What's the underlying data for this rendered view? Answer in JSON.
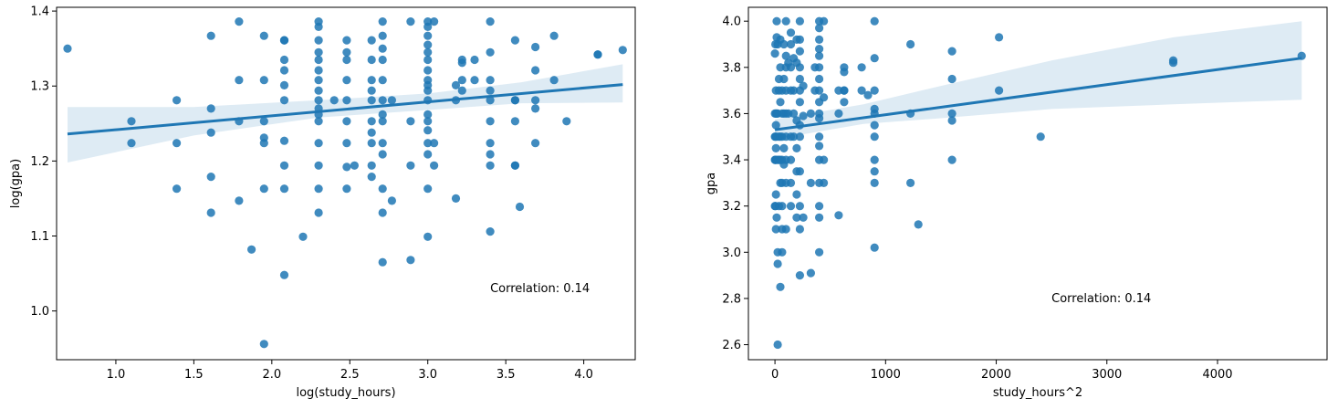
{
  "chart_data": [
    {
      "type": "scatter",
      "xlabel": "log(study_hours)",
      "ylabel": "log(gpa)",
      "xlim": [
        0.62,
        4.33
      ],
      "ylim": [
        0.935,
        1.405
      ],
      "xticks": [
        1.0,
        1.5,
        2.0,
        2.5,
        3.0,
        3.5,
        4.0
      ],
      "xtick_labels": [
        "1.0",
        "1.5",
        "2.0",
        "2.5",
        "3.0",
        "3.5",
        "4.0"
      ],
      "yticks": [
        1.0,
        1.1,
        1.2,
        1.3,
        1.4
      ],
      "ytick_labels": [
        "1.0",
        "1.1",
        "1.2",
        "1.3",
        "1.4"
      ],
      "annotation": {
        "text": "Correlation: 0.14",
        "x": 3.4,
        "y": 1.03
      },
      "regression": {
        "line": [
          [
            0.69,
            1.236
          ],
          [
            4.25,
            1.302
          ]
        ],
        "ci_upper": [
          [
            0.69,
            1.272
          ],
          [
            1.5,
            1.272
          ],
          [
            2.3,
            1.281
          ],
          [
            3.0,
            1.29
          ],
          [
            3.6,
            1.305
          ],
          [
            4.25,
            1.329
          ]
        ],
        "ci_lower": [
          [
            0.69,
            1.198
          ],
          [
            1.5,
            1.234
          ],
          [
            2.3,
            1.258
          ],
          [
            3.0,
            1.268
          ],
          [
            3.6,
            1.277
          ],
          [
            4.25,
            1.278
          ]
        ]
      },
      "points": [
        [
          0.69,
          1.35
        ],
        [
          1.1,
          1.253
        ],
        [
          1.1,
          1.224
        ],
        [
          1.39,
          1.281
        ],
        [
          1.39,
          1.224
        ],
        [
          1.39,
          1.163
        ],
        [
          1.61,
          1.367
        ],
        [
          1.61,
          1.27
        ],
        [
          1.61,
          1.238
        ],
        [
          1.61,
          1.179
        ],
        [
          1.61,
          1.131
        ],
        [
          1.79,
          1.386
        ],
        [
          1.79,
          1.308
        ],
        [
          1.79,
          1.253
        ],
        [
          1.79,
          1.147
        ],
        [
          1.95,
          1.367
        ],
        [
          1.95,
          1.308
        ],
        [
          1.95,
          1.253
        ],
        [
          1.95,
          1.231
        ],
        [
          1.95,
          1.224
        ],
        [
          1.95,
          1.163
        ],
        [
          1.95,
          0.956
        ],
        [
          1.87,
          1.082
        ],
        [
          2.08,
          1.361
        ],
        [
          2.08,
          1.361
        ],
        [
          2.08,
          1.335
        ],
        [
          2.08,
          1.321
        ],
        [
          2.08,
          1.301
        ],
        [
          2.08,
          1.281
        ],
        [
          2.08,
          1.227
        ],
        [
          2.08,
          1.194
        ],
        [
          2.08,
          1.163
        ],
        [
          2.08,
          1.048
        ],
        [
          2.2,
          1.099
        ],
        [
          2.3,
          1.386
        ],
        [
          2.3,
          1.379
        ],
        [
          2.3,
          1.361
        ],
        [
          2.3,
          1.345
        ],
        [
          2.3,
          1.335
        ],
        [
          2.3,
          1.321
        ],
        [
          2.3,
          1.308
        ],
        [
          2.3,
          1.294
        ],
        [
          2.3,
          1.281
        ],
        [
          2.3,
          1.27
        ],
        [
          2.3,
          1.262
        ],
        [
          2.3,
          1.253
        ],
        [
          2.3,
          1.224
        ],
        [
          2.3,
          1.194
        ],
        [
          2.3,
          1.163
        ],
        [
          2.3,
          1.131
        ],
        [
          2.4,
          1.281
        ],
        [
          2.48,
          1.361
        ],
        [
          2.48,
          1.345
        ],
        [
          2.48,
          1.335
        ],
        [
          2.48,
          1.308
        ],
        [
          2.48,
          1.281
        ],
        [
          2.48,
          1.253
        ],
        [
          2.48,
          1.224
        ],
        [
          2.48,
          1.192
        ],
        [
          2.48,
          1.163
        ],
        [
          2.53,
          1.194
        ],
        [
          2.64,
          1.361
        ],
        [
          2.64,
          1.335
        ],
        [
          2.64,
          1.308
        ],
        [
          2.64,
          1.294
        ],
        [
          2.64,
          1.281
        ],
        [
          2.64,
          1.253
        ],
        [
          2.64,
          1.238
        ],
        [
          2.64,
          1.224
        ],
        [
          2.64,
          1.194
        ],
        [
          2.64,
          1.179
        ],
        [
          2.71,
          1.386
        ],
        [
          2.71,
          1.367
        ],
        [
          2.71,
          1.35
        ],
        [
          2.71,
          1.335
        ],
        [
          2.71,
          1.308
        ],
        [
          2.71,
          1.281
        ],
        [
          2.71,
          1.262
        ],
        [
          2.71,
          1.253
        ],
        [
          2.71,
          1.224
        ],
        [
          2.71,
          1.209
        ],
        [
          2.71,
          1.163
        ],
        [
          2.71,
          1.131
        ],
        [
          2.71,
          1.065
        ],
        [
          2.77,
          1.281
        ],
        [
          2.77,
          1.147
        ],
        [
          2.89,
          1.386
        ],
        [
          2.89,
          1.253
        ],
        [
          2.89,
          1.194
        ],
        [
          2.89,
          1.068
        ],
        [
          3.0,
          1.386
        ],
        [
          3.0,
          1.379
        ],
        [
          3.0,
          1.367
        ],
        [
          3.0,
          1.355
        ],
        [
          3.0,
          1.345
        ],
        [
          3.0,
          1.335
        ],
        [
          3.0,
          1.321
        ],
        [
          3.0,
          1.308
        ],
        [
          3.0,
          1.301
        ],
        [
          3.0,
          1.294
        ],
        [
          3.0,
          1.281
        ],
        [
          3.0,
          1.262
        ],
        [
          3.0,
          1.253
        ],
        [
          3.0,
          1.241
        ],
        [
          3.0,
          1.224
        ],
        [
          3.0,
          1.209
        ],
        [
          3.0,
          1.163
        ],
        [
          3.0,
          1.099
        ],
        [
          3.04,
          1.386
        ],
        [
          3.04,
          1.224
        ],
        [
          3.04,
          1.194
        ],
        [
          3.18,
          1.301
        ],
        [
          3.18,
          1.281
        ],
        [
          3.18,
          1.15
        ],
        [
          3.22,
          1.335
        ],
        [
          3.22,
          1.331
        ],
        [
          3.22,
          1.308
        ],
        [
          3.22,
          1.294
        ],
        [
          3.3,
          1.308
        ],
        [
          3.3,
          1.335
        ],
        [
          3.4,
          1.386
        ],
        [
          3.4,
          1.345
        ],
        [
          3.4,
          1.308
        ],
        [
          3.4,
          1.294
        ],
        [
          3.4,
          1.281
        ],
        [
          3.4,
          1.253
        ],
        [
          3.4,
          1.224
        ],
        [
          3.4,
          1.209
        ],
        [
          3.4,
          1.194
        ],
        [
          3.4,
          1.106
        ],
        [
          3.56,
          1.361
        ],
        [
          3.56,
          1.281
        ],
        [
          3.56,
          1.194
        ],
        [
          3.56,
          1.281
        ],
        [
          3.56,
          1.194
        ],
        [
          3.56,
          1.253
        ],
        [
          3.59,
          1.139
        ],
        [
          3.69,
          1.352
        ],
        [
          3.69,
          1.321
        ],
        [
          3.69,
          1.281
        ],
        [
          3.69,
          1.27
        ],
        [
          3.69,
          1.224
        ],
        [
          3.81,
          1.367
        ],
        [
          3.81,
          1.308
        ],
        [
          3.89,
          1.253
        ],
        [
          4.09,
          1.342
        ],
        [
          4.09,
          1.342
        ],
        [
          4.25,
          1.348
        ]
      ]
    },
    {
      "type": "scatter",
      "xlabel": "study_hours^2",
      "ylabel": "gpa",
      "xlim": [
        -240,
        4990
      ],
      "ylim": [
        2.535,
        4.06
      ],
      "xticks": [
        0,
        1000,
        2000,
        3000,
        4000
      ],
      "xtick_labels": [
        "0",
        "1000",
        "2000",
        "3000",
        "4000"
      ],
      "yticks": [
        2.6,
        2.8,
        3.0,
        3.2,
        3.4,
        3.6,
        3.8,
        4.0
      ],
      "ytick_labels": [
        "2.6",
        "2.8",
        "3.0",
        "3.2",
        "3.4",
        "3.6",
        "3.8",
        "4.0"
      ],
      "annotation": {
        "text": "Correlation: 0.14",
        "x": 2500,
        "y": 2.8
      },
      "regression": {
        "line": [
          [
            0,
            3.53
          ],
          [
            4761,
            3.84
          ]
        ],
        "ci_upper": [
          [
            0,
            3.575
          ],
          [
            800,
            3.64
          ],
          [
            1500,
            3.72
          ],
          [
            2500,
            3.83
          ],
          [
            3600,
            3.93
          ],
          [
            4761,
            4.0
          ]
        ],
        "ci_lower": [
          [
            0,
            3.49
          ],
          [
            800,
            3.555
          ],
          [
            1500,
            3.58
          ],
          [
            2500,
            3.62
          ],
          [
            3600,
            3.64
          ],
          [
            4761,
            3.66
          ]
        ]
      },
      "points": [
        [
          0,
          3.86
        ],
        [
          0,
          3.6
        ],
        [
          0,
          3.5
        ],
        [
          0,
          3.4
        ],
        [
          0,
          3.2
        ],
        [
          4,
          3.9
        ],
        [
          4,
          3.5
        ],
        [
          4,
          3.4
        ],
        [
          4,
          3.2
        ],
        [
          9,
          3.7
        ],
        [
          9,
          3.6
        ],
        [
          9,
          3.55
        ],
        [
          9,
          3.45
        ],
        [
          9,
          3.4
        ],
        [
          9,
          3.25
        ],
        [
          9,
          3.1
        ],
        [
          16,
          4.0
        ],
        [
          16,
          3.93
        ],
        [
          16,
          3.6
        ],
        [
          16,
          3.5
        ],
        [
          16,
          3.15
        ],
        [
          25,
          3.9
        ],
        [
          25,
          3.6
        ],
        [
          25,
          3.4
        ],
        [
          25,
          3.0
        ],
        [
          25,
          2.95
        ],
        [
          25,
          2.6
        ],
        [
          36,
          3.75
        ],
        [
          36,
          3.7
        ],
        [
          36,
          3.5
        ],
        [
          36,
          3.4
        ],
        [
          36,
          3.2
        ],
        [
          49,
          3.92
        ],
        [
          49,
          3.8
        ],
        [
          49,
          3.65
        ],
        [
          49,
          3.5
        ],
        [
          49,
          3.4
        ],
        [
          49,
          3.3
        ],
        [
          49,
          2.85
        ],
        [
          64,
          3.7
        ],
        [
          64,
          3.6
        ],
        [
          64,
          3.5
        ],
        [
          64,
          3.4
        ],
        [
          64,
          3.3
        ],
        [
          64,
          3.2
        ],
        [
          64,
          3.1
        ],
        [
          64,
          3.0
        ],
        [
          81,
          3.9
        ],
        [
          81,
          3.75
        ],
        [
          81,
          3.6
        ],
        [
          81,
          3.45
        ],
        [
          81,
          3.38
        ],
        [
          100,
          4.0
        ],
        [
          100,
          3.85
        ],
        [
          100,
          3.8
        ],
        [
          100,
          3.7
        ],
        [
          100,
          3.6
        ],
        [
          100,
          3.5
        ],
        [
          100,
          3.4
        ],
        [
          100,
          3.3
        ],
        [
          100,
          3.1
        ],
        [
          121,
          3.82
        ],
        [
          121,
          3.6
        ],
        [
          144,
          3.95
        ],
        [
          144,
          3.9
        ],
        [
          144,
          3.8
        ],
        [
          144,
          3.7
        ],
        [
          144,
          3.5
        ],
        [
          144,
          3.4
        ],
        [
          144,
          3.3
        ],
        [
          144,
          3.2
        ],
        [
          169,
          3.84
        ],
        [
          169,
          3.7
        ],
        [
          169,
          3.6
        ],
        [
          169,
          3.5
        ],
        [
          196,
          3.92
        ],
        [
          196,
          3.82
        ],
        [
          196,
          3.57
        ],
        [
          196,
          3.45
        ],
        [
          196,
          3.35
        ],
        [
          196,
          3.25
        ],
        [
          196,
          3.15
        ],
        [
          225,
          4.0
        ],
        [
          225,
          3.92
        ],
        [
          225,
          3.87
        ],
        [
          225,
          3.8
        ],
        [
          225,
          3.75
        ],
        [
          225,
          3.7
        ],
        [
          225,
          3.65
        ],
        [
          225,
          3.55
        ],
        [
          225,
          3.5
        ],
        [
          225,
          3.35
        ],
        [
          225,
          3.2
        ],
        [
          225,
          3.1
        ],
        [
          225,
          2.9
        ],
        [
          256,
          3.72
        ],
        [
          256,
          3.59
        ],
        [
          256,
          3.15
        ],
        [
          324,
          3.6
        ],
        [
          324,
          3.3
        ],
        [
          324,
          2.91
        ],
        [
          361,
          3.8
        ],
        [
          361,
          3.7
        ],
        [
          400,
          4.0
        ],
        [
          400,
          3.97
        ],
        [
          400,
          3.92
        ],
        [
          400,
          3.88
        ],
        [
          400,
          3.85
        ],
        [
          400,
          3.8
        ],
        [
          400,
          3.75
        ],
        [
          400,
          3.7
        ],
        [
          400,
          3.65
        ],
        [
          400,
          3.6
        ],
        [
          400,
          3.58
        ],
        [
          400,
          3.5
        ],
        [
          400,
          3.46
        ],
        [
          400,
          3.4
        ],
        [
          400,
          3.3
        ],
        [
          400,
          3.2
        ],
        [
          400,
          3.15
        ],
        [
          400,
          3.0
        ],
        [
          441,
          4.0
        ],
        [
          441,
          3.67
        ],
        [
          441,
          3.4
        ],
        [
          441,
          3.3
        ],
        [
          576,
          3.7
        ],
        [
          576,
          3.6
        ],
        [
          576,
          3.16
        ],
        [
          625,
          3.8
        ],
        [
          625,
          3.78
        ],
        [
          625,
          3.7
        ],
        [
          625,
          3.7
        ],
        [
          625,
          3.65
        ],
        [
          784,
          3.8
        ],
        [
          784,
          3.7
        ],
        [
          841,
          3.68
        ],
        [
          900,
          4.0
        ],
        [
          900,
          3.84
        ],
        [
          900,
          3.7
        ],
        [
          900,
          3.62
        ],
        [
          900,
          3.6
        ],
        [
          900,
          3.55
        ],
        [
          900,
          3.5
        ],
        [
          900,
          3.4
        ],
        [
          900,
          3.35
        ],
        [
          900,
          3.3
        ],
        [
          900,
          3.02
        ],
        [
          1225,
          3.9
        ],
        [
          1225,
          3.6
        ],
        [
          1225,
          3.3
        ],
        [
          1296,
          3.12
        ],
        [
          1600,
          3.87
        ],
        [
          1600,
          3.75
        ],
        [
          1600,
          3.6
        ],
        [
          1600,
          3.57
        ],
        [
          1600,
          3.4
        ],
        [
          2025,
          3.93
        ],
        [
          2025,
          3.7
        ],
        [
          2401,
          3.5
        ],
        [
          3600,
          3.83
        ],
        [
          3600,
          3.82
        ],
        [
          4761,
          3.85
        ]
      ]
    }
  ]
}
